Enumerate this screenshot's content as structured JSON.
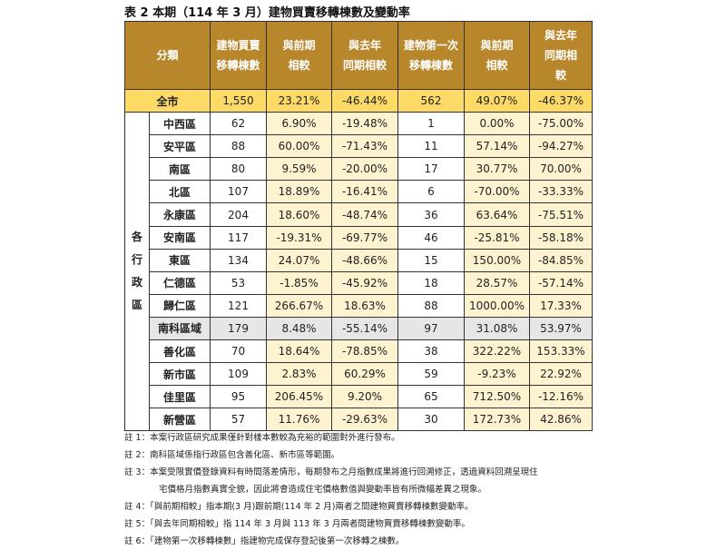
{
  "title": "表 2 本期（114 年 3 月）建物買賣移轉棟數及變動率",
  "headers": {
    "category": "分類",
    "col1_l1": "建物買賣",
    "col1_l2": "移轉棟數",
    "col2_l1": "與前期",
    "col2_l2": "相較",
    "col3_l1": "與去年",
    "col3_l2": "同期相較",
    "col4_l1": "建物第一次",
    "col4_l2": "移轉棟數",
    "col5_l1": "與前期",
    "col5_l2": "相較",
    "col6_l1": "與去年",
    "col6_l2": "同期相",
    "col6_l3": "較"
  },
  "total": {
    "name": "全市",
    "values": [
      "1,550",
      "23.21%",
      "-46.44%",
      "562",
      "49.07%",
      "-46.37%"
    ]
  },
  "group_label": [
    "各",
    "行",
    "政",
    "區"
  ],
  "rows": [
    {
      "name": "中西區",
      "values": [
        "62",
        "6.90%",
        "-19.48%",
        "1",
        "0.00%",
        "-75.00%"
      ]
    },
    {
      "name": "安平區",
      "values": [
        "88",
        "60.00%",
        "-71.43%",
        "11",
        "57.14%",
        "-94.27%"
      ]
    },
    {
      "name": "南區",
      "values": [
        "80",
        "9.59%",
        "-20.00%",
        "17",
        "30.77%",
        "70.00%"
      ]
    },
    {
      "name": "北區",
      "values": [
        "107",
        "18.89%",
        "-16.41%",
        "6",
        "-70.00%",
        "-33.33%"
      ]
    },
    {
      "name": "永康區",
      "values": [
        "204",
        "18.60%",
        "-48.74%",
        "36",
        "63.64%",
        "-75.51%"
      ]
    },
    {
      "name": "安南區",
      "values": [
        "117",
        "-19.31%",
        "-69.77%",
        "46",
        "-25.81%",
        "-58.18%"
      ]
    },
    {
      "name": "東區",
      "values": [
        "134",
        "24.07%",
        "-48.66%",
        "15",
        "150.00%",
        "-84.85%"
      ]
    },
    {
      "name": "仁德區",
      "values": [
        "53",
        "-1.85%",
        "-45.92%",
        "18",
        "28.57%",
        "-57.14%"
      ]
    },
    {
      "name": "歸仁區",
      "values": [
        "121",
        "266.67%",
        "18.63%",
        "88",
        "1000.00%",
        "17.33%"
      ]
    },
    {
      "name": "南科區域",
      "values": [
        "179",
        "8.48%",
        "-55.14%",
        "97",
        "31.08%",
        "53.97%"
      ]
    },
    {
      "name": "善化區",
      "values": [
        "70",
        "18.64%",
        "-78.85%",
        "38",
        "322.22%",
        "153.33%"
      ]
    },
    {
      "name": "新市區",
      "values": [
        "109",
        "2.83%",
        "60.29%",
        "59",
        "-9.23%",
        "22.92%"
      ]
    },
    {
      "name": "佳里區",
      "values": [
        "95",
        "206.45%",
        "9.20%",
        "65",
        "712.50%",
        "-12.16%"
      ]
    },
    {
      "name": "新營區",
      "values": [
        "57",
        "11.76%",
        "-29.63%",
        "30",
        "172.73%",
        "42.86%"
      ]
    }
  ],
  "notes": {
    "n1": "註 1：本案行政區研究成果僅針對樣本數較為充裕的範圍對外進行發布。",
    "n2": "註 2：南科區域係指行政區包含善化區、新市區等範圍。",
    "n3a": "註 3：本案受限實價登錄資料有時間落差情形，每期發布之月指數成果將進行回溯修正，透過資料回溯呈現住",
    "n3b": "宅價格月指數真實全貌，因此將會造成住宅價格數值與變動率皆有所微幅差異之現象。",
    "n4": "註 4：「與前期相較」指本期(3 月)跟前期(114 年 2 月)兩者之間建物買賣移轉棟數變動率。",
    "n5": "註 5：「與去年同期相較」指 114 年 3 月與 113 年 3 月兩者間建物買賣移轉棟數變動率。",
    "n6": "註 6：「建物第一次移轉棟數」指建物完成保存登記後第一次移轉之棟數。"
  }
}
